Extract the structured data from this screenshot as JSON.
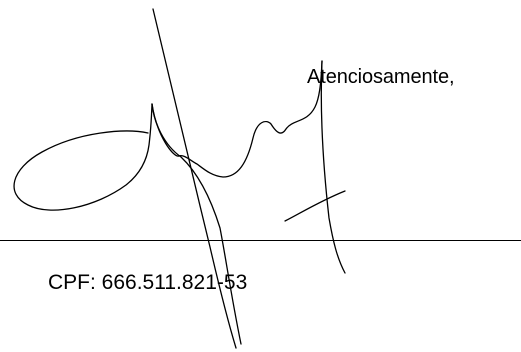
{
  "document": {
    "closing": "Atenciosamente,",
    "cpf_line": "CPF: 666.511.821-53"
  },
  "signature": {
    "type": "handwritten signature",
    "color": "#000000"
  }
}
